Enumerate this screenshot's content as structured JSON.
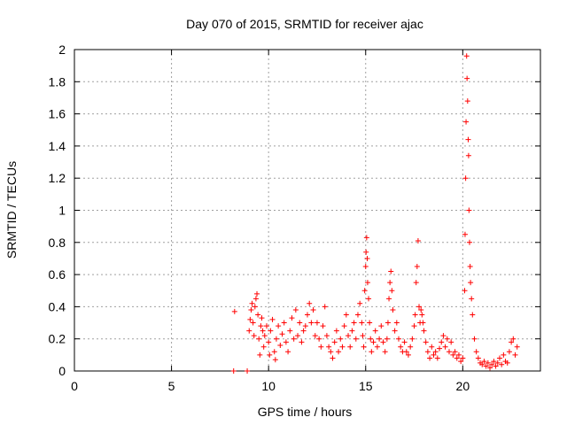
{
  "chart_data": {
    "type": "scatter",
    "title": "Day 070 of 2015, SRMTID for receiver ajac",
    "xlabel": "GPS time / hours",
    "ylabel": "SRMTID / TECUs",
    "xlim": [
      0,
      24
    ],
    "ylim": [
      0,
      2
    ],
    "xticks": [
      0,
      5,
      10,
      15,
      20
    ],
    "yticks": [
      0,
      0.2,
      0.4,
      0.6,
      0.8,
      1,
      1.2,
      1.4,
      1.6,
      1.8,
      2
    ],
    "grid": true,
    "marker": "+",
    "color": "#ff0000",
    "series": [
      {
        "name": "ajac",
        "points": [
          [
            8.2,
            0.0
          ],
          [
            8.25,
            0.37
          ],
          [
            8.9,
            0.0
          ],
          [
            9.0,
            0.25
          ],
          [
            9.05,
            0.32
          ],
          [
            9.1,
            0.38
          ],
          [
            9.15,
            0.42
          ],
          [
            9.2,
            0.3
          ],
          [
            9.25,
            0.22
          ],
          [
            9.3,
            0.4
          ],
          [
            9.35,
            0.45
          ],
          [
            9.4,
            0.48
          ],
          [
            9.45,
            0.35
          ],
          [
            9.5,
            0.2
          ],
          [
            9.55,
            0.1
          ],
          [
            9.6,
            0.28
          ],
          [
            9.65,
            0.33
          ],
          [
            9.7,
            0.25
          ],
          [
            9.75,
            0.15
          ],
          [
            9.8,
            0.22
          ],
          [
            9.9,
            0.28
          ],
          [
            10.0,
            0.18
          ],
          [
            10.05,
            0.1
          ],
          [
            10.1,
            0.25
          ],
          [
            10.2,
            0.32
          ],
          [
            10.3,
            0.12
          ],
          [
            10.35,
            0.07
          ],
          [
            10.4,
            0.2
          ],
          [
            10.5,
            0.28
          ],
          [
            10.6,
            0.16
          ],
          [
            10.7,
            0.23
          ],
          [
            10.8,
            0.3
          ],
          [
            10.9,
            0.18
          ],
          [
            11.0,
            0.12
          ],
          [
            11.1,
            0.25
          ],
          [
            11.2,
            0.33
          ],
          [
            11.3,
            0.2
          ],
          [
            11.4,
            0.38
          ],
          [
            11.5,
            0.22
          ],
          [
            11.6,
            0.3
          ],
          [
            11.7,
            0.18
          ],
          [
            11.8,
            0.25
          ],
          [
            11.9,
            0.28
          ],
          [
            12.0,
            0.35
          ],
          [
            12.1,
            0.42
          ],
          [
            12.2,
            0.3
          ],
          [
            12.3,
            0.38
          ],
          [
            12.4,
            0.22
          ],
          [
            12.5,
            0.3
          ],
          [
            12.6,
            0.2
          ],
          [
            12.7,
            0.15
          ],
          [
            12.8,
            0.28
          ],
          [
            12.9,
            0.4
          ],
          [
            13.0,
            0.22
          ],
          [
            13.1,
            0.15
          ],
          [
            13.2,
            0.12
          ],
          [
            13.3,
            0.08
          ],
          [
            13.4,
            0.18
          ],
          [
            13.5,
            0.25
          ],
          [
            13.6,
            0.12
          ],
          [
            13.7,
            0.2
          ],
          [
            13.8,
            0.15
          ],
          [
            13.9,
            0.28
          ],
          [
            14.0,
            0.35
          ],
          [
            14.1,
            0.22
          ],
          [
            14.2,
            0.15
          ],
          [
            14.3,
            0.25
          ],
          [
            14.4,
            0.3
          ],
          [
            14.5,
            0.2
          ],
          [
            14.6,
            0.35
          ],
          [
            14.7,
            0.42
          ],
          [
            14.8,
            0.3
          ],
          [
            14.85,
            0.22
          ],
          [
            14.9,
            0.15
          ],
          [
            14.95,
            0.5
          ],
          [
            15.0,
            0.65
          ],
          [
            15.02,
            0.74
          ],
          [
            15.05,
            0.83
          ],
          [
            15.08,
            0.7
          ],
          [
            15.1,
            0.55
          ],
          [
            15.15,
            0.45
          ],
          [
            15.2,
            0.3
          ],
          [
            15.25,
            0.2
          ],
          [
            15.3,
            0.12
          ],
          [
            15.4,
            0.18
          ],
          [
            15.5,
            0.25
          ],
          [
            15.6,
            0.15
          ],
          [
            15.7,
            0.2
          ],
          [
            15.8,
            0.28
          ],
          [
            15.9,
            0.18
          ],
          [
            16.0,
            0.12
          ],
          [
            16.1,
            0.2
          ],
          [
            16.15,
            0.3
          ],
          [
            16.2,
            0.45
          ],
          [
            16.25,
            0.55
          ],
          [
            16.3,
            0.62
          ],
          [
            16.35,
            0.5
          ],
          [
            16.4,
            0.38
          ],
          [
            16.5,
            0.25
          ],
          [
            16.6,
            0.3
          ],
          [
            16.7,
            0.2
          ],
          [
            16.8,
            0.15
          ],
          [
            16.9,
            0.12
          ],
          [
            17.0,
            0.18
          ],
          [
            17.1,
            0.12
          ],
          [
            17.2,
            0.1
          ],
          [
            17.3,
            0.15
          ],
          [
            17.4,
            0.2
          ],
          [
            17.5,
            0.28
          ],
          [
            17.55,
            0.35
          ],
          [
            17.6,
            0.55
          ],
          [
            17.65,
            0.65
          ],
          [
            17.7,
            0.81
          ],
          [
            17.75,
            0.4
          ],
          [
            17.8,
            0.3
          ],
          [
            17.85,
            0.38
          ],
          [
            17.9,
            0.35
          ],
          [
            17.95,
            0.3
          ],
          [
            18.0,
            0.25
          ],
          [
            18.1,
            0.18
          ],
          [
            18.2,
            0.12
          ],
          [
            18.3,
            0.08
          ],
          [
            18.4,
            0.15
          ],
          [
            18.5,
            0.1
          ],
          [
            18.6,
            0.12
          ],
          [
            18.7,
            0.08
          ],
          [
            18.8,
            0.14
          ],
          [
            18.9,
            0.18
          ],
          [
            19.0,
            0.22
          ],
          [
            19.1,
            0.15
          ],
          [
            19.2,
            0.2
          ],
          [
            19.3,
            0.12
          ],
          [
            19.4,
            0.18
          ],
          [
            19.5,
            0.1
          ],
          [
            19.6,
            0.12
          ],
          [
            19.7,
            0.08
          ],
          [
            19.8,
            0.1
          ],
          [
            19.9,
            0.06
          ],
          [
            20.0,
            0.08
          ],
          [
            20.1,
            0.5
          ],
          [
            20.12,
            0.85
          ],
          [
            20.15,
            1.2
          ],
          [
            20.17,
            1.55
          ],
          [
            20.2,
            1.96
          ],
          [
            20.22,
            1.82
          ],
          [
            20.25,
            1.68
          ],
          [
            20.28,
            1.44
          ],
          [
            20.3,
            1.34
          ],
          [
            20.32,
            1.0
          ],
          [
            20.35,
            0.8
          ],
          [
            20.38,
            0.65
          ],
          [
            20.4,
            0.55
          ],
          [
            20.45,
            0.45
          ],
          [
            20.5,
            0.35
          ],
          [
            20.6,
            0.2
          ],
          [
            20.7,
            0.12
          ],
          [
            20.8,
            0.08
          ],
          [
            20.9,
            0.05
          ],
          [
            21.0,
            0.04
          ],
          [
            21.1,
            0.06
          ],
          [
            21.2,
            0.03
          ],
          [
            21.3,
            0.05
          ],
          [
            21.4,
            0.02
          ],
          [
            21.5,
            0.04
          ],
          [
            21.6,
            0.06
          ],
          [
            21.7,
            0.03
          ],
          [
            21.8,
            0.05
          ],
          [
            21.9,
            0.08
          ],
          [
            22.0,
            0.04
          ],
          [
            22.1,
            0.1
          ],
          [
            22.2,
            0.06
          ],
          [
            22.3,
            0.05
          ],
          [
            22.4,
            0.12
          ],
          [
            22.5,
            0.18
          ],
          [
            22.6,
            0.2
          ],
          [
            22.7,
            0.1
          ],
          [
            22.8,
            0.15
          ]
        ]
      }
    ]
  }
}
